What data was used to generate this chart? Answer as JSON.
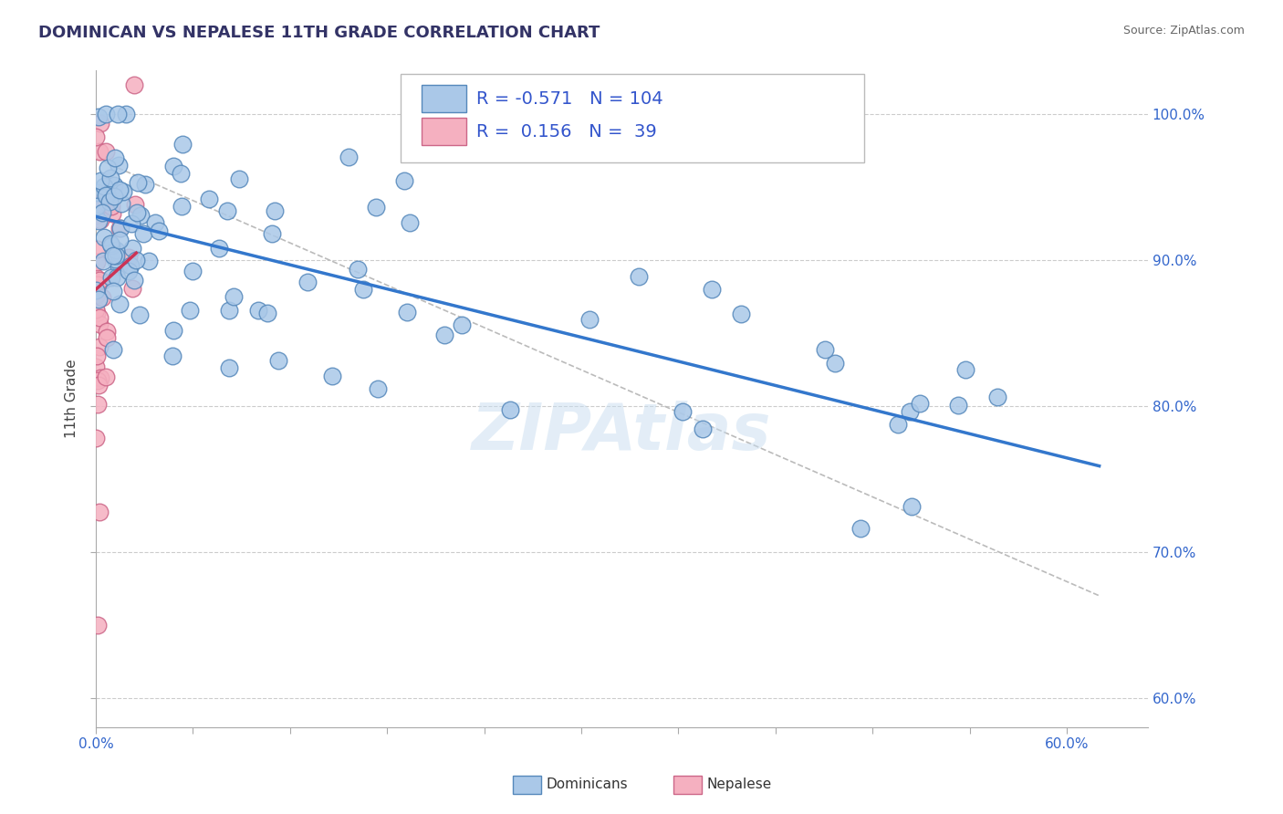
{
  "title": "DOMINICAN VS NEPALESE 11TH GRADE CORRELATION CHART",
  "source": "Source: ZipAtlas.com",
  "ylabel": "11th Grade",
  "blue_R": -0.571,
  "blue_N": 104,
  "pink_R": 0.156,
  "pink_N": 39,
  "blue_color": "#aac8e8",
  "blue_edge": "#5588bb",
  "pink_color": "#f5b0c0",
  "pink_edge": "#cc6688",
  "blue_line_color": "#3377cc",
  "pink_line_color": "#cc3355",
  "trendline_color": "#bbbbbb",
  "legend_text_color": "#3355cc",
  "background_color": "#ffffff",
  "grid_color": "#cccccc",
  "watermark_color": "#c8ddf0",
  "title_color": "#333366",
  "source_color": "#666666",
  "ytick_color": "#3366cc",
  "xtick_vals_shown": [
    0.0,
    60.0
  ],
  "ytick_vals": [
    60,
    70,
    80,
    90,
    100
  ],
  "xlim": [
    0.0,
    65.0
  ],
  "ylim": [
    58,
    103
  ]
}
